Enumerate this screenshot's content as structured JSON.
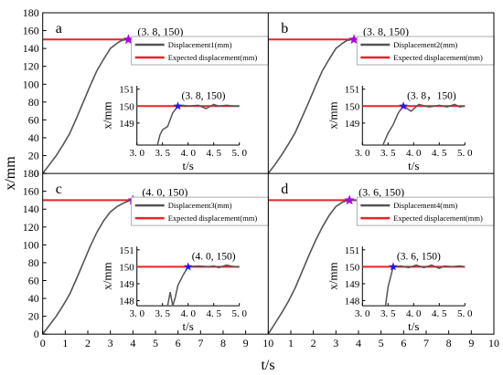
{
  "figure": {
    "xlabel": "t/s",
    "ylabel": "x/mm",
    "main_y_ticks": [
      "0",
      "20",
      "40",
      "60",
      "80",
      "100",
      "120",
      "140",
      "160",
      "180"
    ],
    "left_x_ticks": [
      "0",
      "1",
      "2",
      "3",
      "4",
      "5",
      "6",
      "7",
      "8",
      "9",
      "10"
    ],
    "right_x_ticks": [
      "1",
      "2",
      "3",
      "4",
      "5",
      "6",
      "7",
      "8",
      "9",
      "10"
    ],
    "colors": {
      "displacement": "#555555",
      "expected": "#e8232a",
      "star_main": "#b000e8",
      "star_inset": "#1a1aff"
    }
  },
  "chart_data": [
    {
      "type": "line",
      "panel_label": "a",
      "xlabel": "t/s",
      "ylabel": "x/mm",
      "xlim": [
        0,
        10
      ],
      "ylim": [
        0,
        180
      ],
      "series": [
        {
          "name": "Displacement1(mm)",
          "x": [
            0,
            0.3,
            0.6,
            0.9,
            1.2,
            1.5,
            1.8,
            2.1,
            2.4,
            2.7,
            3.0,
            3.3,
            3.5,
            3.7,
            3.8,
            4,
            10
          ],
          "y": [
            0,
            10,
            20,
            32,
            45,
            62,
            80,
            98,
            115,
            128,
            140,
            146,
            149,
            150,
            150,
            150,
            150
          ]
        },
        {
          "name": "Expected displacement(mm)",
          "x": [
            0,
            10
          ],
          "y": [
            150,
            150
          ]
        }
      ],
      "annotation": {
        "text": "(3. 8, 150)",
        "x": 3.8,
        "y": 150
      },
      "inset": {
        "xlim": [
          3.0,
          5.0
        ],
        "ylim": [
          147.7,
          151.2
        ],
        "x_ticks": [
          "3. 0",
          "3. 5",
          "4. 0",
          "4. 5",
          "5. 0"
        ],
        "y_ticks": [
          "149",
          "150",
          "151"
        ],
        "xlabel": "t/s",
        "ylabel": "x/mm",
        "annotation": {
          "text": "(3. 8, 150)",
          "x": 3.8,
          "y": 150
        },
        "displacement": {
          "x": [
            3.4,
            3.45,
            3.5,
            3.6,
            3.7,
            3.8,
            3.9,
            4.0,
            4.2,
            4.35,
            4.5,
            4.6,
            4.75,
            4.9,
            5.0
          ],
          "y": [
            147.7,
            148.3,
            148.6,
            148.8,
            149.6,
            150,
            150.05,
            150.0,
            150.05,
            149.85,
            150.1,
            150.0,
            150.05,
            150.0,
            150.0
          ]
        }
      }
    },
    {
      "type": "line",
      "panel_label": "b",
      "xlabel": "t/s",
      "ylabel": "x/mm",
      "xlim": [
        0,
        10
      ],
      "ylim": [
        0,
        180
      ],
      "series": [
        {
          "name": "Displacement2(mm)",
          "x": [
            0,
            0.3,
            0.6,
            0.9,
            1.2,
            1.5,
            1.8,
            2.1,
            2.4,
            2.7,
            3.0,
            3.3,
            3.5,
            3.7,
            3.8,
            4,
            10
          ],
          "y": [
            0,
            10,
            21,
            33,
            46,
            63,
            80,
            98,
            115,
            128,
            140,
            146,
            149,
            150,
            150,
            150,
            150
          ]
        },
        {
          "name": "Expected displacement(mm)",
          "x": [
            0,
            10
          ],
          "y": [
            150,
            150
          ]
        }
      ],
      "annotation": {
        "text": "(3. 8, 150)",
        "x": 3.8,
        "y": 150
      },
      "inset": {
        "xlim": [
          3.0,
          5.0
        ],
        "ylim": [
          147.7,
          151.2
        ],
        "x_ticks": [
          "3. 0",
          "3. 5",
          "4. 0",
          "4. 5",
          "5. 0"
        ],
        "y_ticks": [
          "149",
          "150",
          "151"
        ],
        "xlabel": "t/s",
        "ylabel": "x/mm",
        "annotation": {
          "text": "(3. 8，150)",
          "x": 3.8,
          "y": 150
        },
        "displacement": {
          "x": [
            3.4,
            3.5,
            3.6,
            3.7,
            3.8,
            3.95,
            4.1,
            4.3,
            4.5,
            4.65,
            4.8,
            4.9,
            5.0
          ],
          "y": [
            147.7,
            148.4,
            148.9,
            149.6,
            150,
            149.7,
            150.1,
            149.95,
            150.05,
            149.95,
            150.1,
            149.95,
            150.0
          ]
        }
      }
    },
    {
      "type": "line",
      "panel_label": "c",
      "xlabel": "t/s",
      "ylabel": "x/mm",
      "xlim": [
        0,
        10
      ],
      "ylim": [
        0,
        180
      ],
      "series": [
        {
          "name": "Displacement3(mm)",
          "x": [
            0,
            0.3,
            0.6,
            0.9,
            1.2,
            1.5,
            1.8,
            2.1,
            2.4,
            2.7,
            3.0,
            3.3,
            3.6,
            3.8,
            4.0,
            10
          ],
          "y": [
            0,
            10,
            20,
            32,
            45,
            62,
            80,
            98,
            114,
            127,
            137,
            143,
            147,
            149,
            150,
            150
          ]
        },
        {
          "name": "Expected displacement(mm)",
          "x": [
            0,
            10
          ],
          "y": [
            150,
            150
          ]
        }
      ],
      "annotation": {
        "text": "(4. 0, 150)",
        "x": 4.0,
        "y": 150
      },
      "inset": {
        "xlim": [
          3.0,
          5.0
        ],
        "ylim": [
          147.7,
          151.2
        ],
        "x_ticks": [
          "3. 0",
          "3. 5",
          "4. 0",
          "4. 5",
          "5. 0"
        ],
        "y_ticks": [
          "148",
          "149",
          "150",
          "151"
        ],
        "xlabel": "t/s",
        "ylabel": "x/mm",
        "annotation": {
          "text": "(4. 0, 150)",
          "x": 4.0,
          "y": 150
        },
        "displacement": {
          "x": [
            3.6,
            3.65,
            3.7,
            3.75,
            3.8,
            3.9,
            4.0,
            4.2,
            4.4,
            4.5,
            4.6,
            4.75,
            4.9,
            5.0
          ],
          "y": [
            147.7,
            148.5,
            147.7,
            148.2,
            148.9,
            149.5,
            150,
            150.05,
            150.0,
            150.05,
            149.95,
            150.1,
            150.0,
            150.0
          ]
        }
      }
    },
    {
      "type": "line",
      "panel_label": "d",
      "xlabel": "t/s",
      "ylabel": "x/mm",
      "xlim": [
        0,
        10
      ],
      "ylim": [
        0,
        180
      ],
      "series": [
        {
          "name": "Displacement4(mm)",
          "x": [
            0,
            0.3,
            0.6,
            0.9,
            1.2,
            1.5,
            1.8,
            2.1,
            2.4,
            2.7,
            3.0,
            3.3,
            3.6,
            4,
            10
          ],
          "y": [
            0,
            12,
            24,
            37,
            52,
            70,
            88,
            105,
            120,
            133,
            143,
            148,
            150,
            150,
            150
          ]
        },
        {
          "name": "Expected displacement(mm)",
          "x": [
            0,
            10
          ],
          "y": [
            150,
            150
          ]
        }
      ],
      "annotation": {
        "text": "(3. 6, 150)",
        "x": 3.6,
        "y": 150
      },
      "inset": {
        "xlim": [
          3.0,
          5.0
        ],
        "ylim": [
          147.7,
          151.2
        ],
        "x_ticks": [
          "3. 0",
          "3. 5",
          "4. 0",
          "4. 5",
          "5. 0"
        ],
        "y_ticks": [
          "148",
          "149",
          "150",
          "151"
        ],
        "xlabel": "t/s",
        "ylabel": "x/mm",
        "annotation": {
          "text": "(3. 6, 150)",
          "x": 3.6,
          "y": 150
        },
        "displacement": {
          "x": [
            3.45,
            3.5,
            3.55,
            3.6,
            3.75,
            3.9,
            4.05,
            4.2,
            4.35,
            4.5,
            4.6,
            4.75,
            4.9,
            5.0
          ],
          "y": [
            147.7,
            148.8,
            149.4,
            150,
            150.05,
            149.95,
            150.1,
            149.95,
            150.1,
            149.9,
            150.05,
            150.0,
            150.05,
            150.0
          ]
        }
      }
    }
  ]
}
